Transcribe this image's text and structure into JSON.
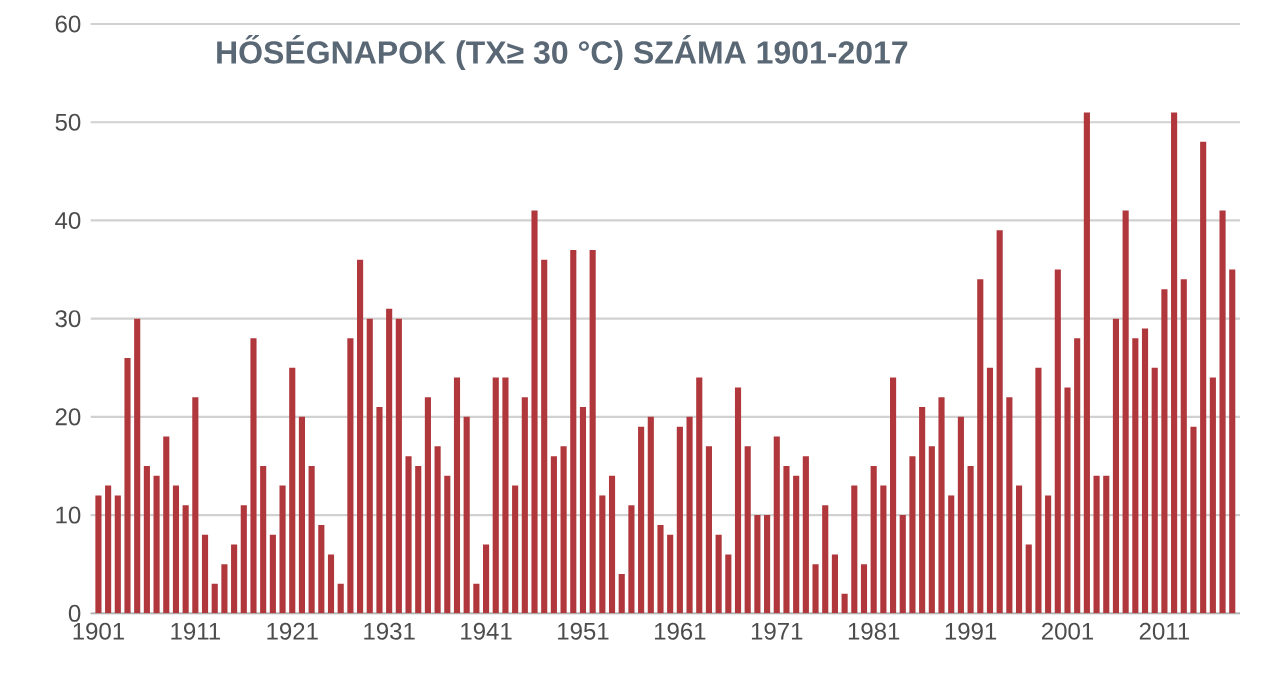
{
  "chart_data": {
    "type": "bar",
    "title": "HŐSÉGNAPOK (TX≥ 30 °C) SZÁMA 1901-2017",
    "categories": [
      "1901",
      null,
      null,
      null,
      null,
      null,
      null,
      null,
      null,
      null,
      "1911",
      null,
      null,
      null,
      null,
      null,
      null,
      null,
      null,
      null,
      "1921",
      null,
      null,
      null,
      null,
      null,
      null,
      null,
      null,
      null,
      "1931",
      null,
      null,
      null,
      null,
      null,
      null,
      null,
      null,
      null,
      "1941",
      null,
      null,
      null,
      null,
      null,
      null,
      null,
      null,
      null,
      "1951",
      null,
      null,
      null,
      null,
      null,
      null,
      null,
      null,
      null,
      "1961",
      null,
      null,
      null,
      null,
      null,
      null,
      null,
      null,
      null,
      "1971",
      null,
      null,
      null,
      null,
      null,
      null,
      null,
      null,
      null,
      "1981",
      null,
      null,
      null,
      null,
      null,
      null,
      null,
      null,
      null,
      "1991",
      null,
      null,
      null,
      null,
      null,
      null,
      null,
      null,
      null,
      "2001",
      null,
      null,
      null,
      null,
      null,
      null,
      null,
      null,
      null,
      "2011",
      null,
      null,
      null,
      null,
      null,
      null,
      null
    ],
    "values": [
      12,
      13,
      12,
      26,
      30,
      15,
      14,
      18,
      13,
      11,
      22,
      8,
      3,
      5,
      7,
      11,
      28,
      15,
      8,
      13,
      25,
      20,
      15,
      9,
      6,
      3,
      28,
      36,
      30,
      21,
      31,
      30,
      16,
      15,
      22,
      17,
      14,
      24,
      20,
      3,
      7,
      24,
      24,
      13,
      22,
      41,
      36,
      16,
      17,
      37,
      21,
      37,
      12,
      14,
      4,
      11,
      19,
      20,
      9,
      8,
      19,
      20,
      24,
      17,
      8,
      6,
      23,
      17,
      10,
      10,
      18,
      15,
      14,
      16,
      5,
      11,
      6,
      2,
      13,
      5,
      15,
      13,
      24,
      10,
      16,
      21,
      17,
      22,
      12,
      20,
      15,
      34,
      25,
      39,
      22,
      13,
      7,
      25,
      12,
      35,
      23,
      28,
      51,
      14,
      14,
      30,
      41,
      28,
      29,
      25,
      33,
      51,
      34,
      19,
      48,
      24,
      41,
      35
    ],
    "color": "#b0383c",
    "ylim": [
      0,
      60
    ],
    "yticks": [
      0,
      10,
      20,
      30,
      40,
      50,
      60
    ],
    "grid": "y"
  }
}
